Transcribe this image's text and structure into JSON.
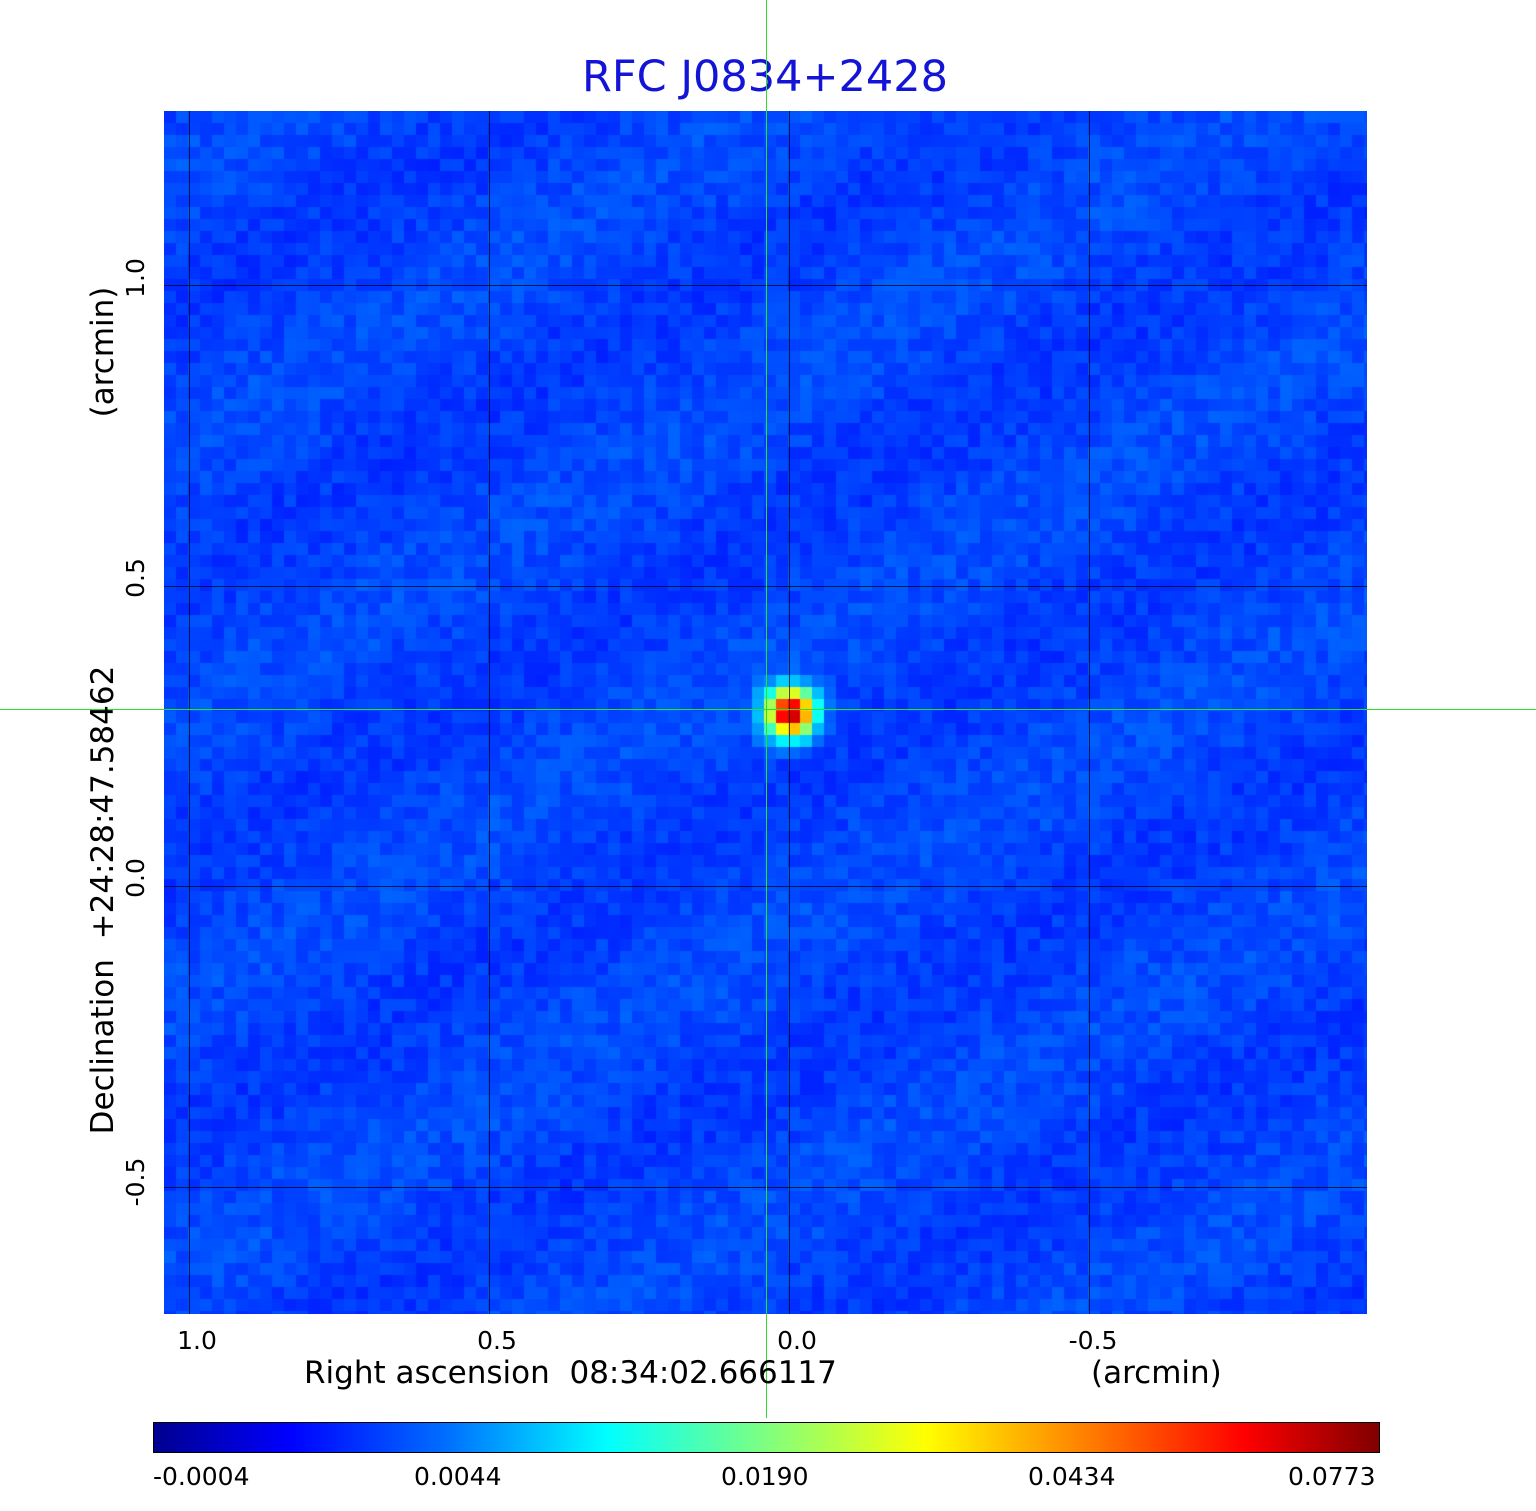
{
  "title": "RFC J0834+2428",
  "colors": {
    "title": "#1414d6",
    "crosshair": "#2ee02e",
    "background_map": "#0a24f5"
  },
  "axes": {
    "x": {
      "label": "Right ascension  08:34:02.666117",
      "unit": "(arcmin)",
      "ticks": [
        "1.0",
        "0.5",
        "0.0",
        "-0.5"
      ]
    },
    "y": {
      "label": "Declination  +24:28:47.58462",
      "unit": "(arcmin)",
      "ticks": [
        "1.0",
        "0.5",
        "0.0",
        "-0.5"
      ]
    }
  },
  "colorbar": {
    "colormap": "jet",
    "ticks": [
      "-0.0004",
      "0.0044",
      "0.0190",
      "0.0434",
      "0.0773"
    ]
  },
  "source": {
    "ra_offset_arcmin": 0.04,
    "dec_offset_arcmin": 0.29
  }
}
